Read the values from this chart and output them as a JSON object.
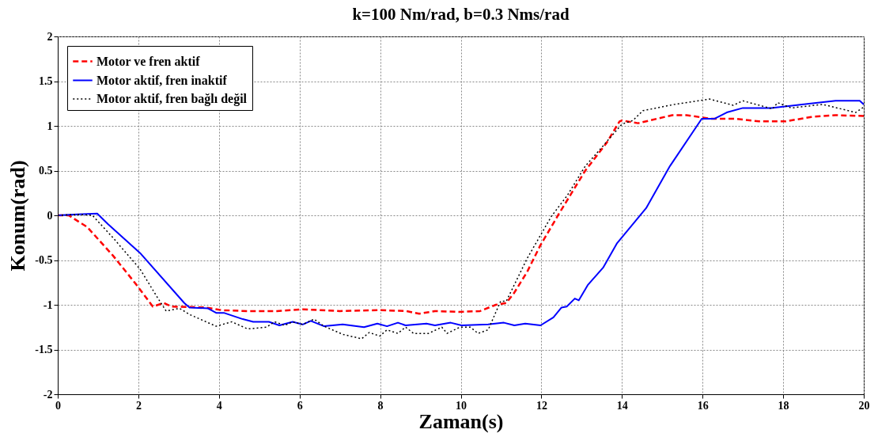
{
  "chart_data": {
    "type": "line",
    "title": "k=100 Nm/rad, b=0.3 Nms/rad",
    "xlabel": "Zaman(s)",
    "ylabel": "Konum(rad)",
    "xlim": [
      0,
      20
    ],
    "ylim": [
      -2,
      2
    ],
    "xticks": [
      0,
      2,
      4,
      6,
      8,
      10,
      12,
      14,
      16,
      18,
      20
    ],
    "yticks": [
      -2,
      -1.5,
      -1,
      -0.5,
      0,
      0.5,
      1,
      1.5,
      2
    ],
    "grid": true,
    "legend": "top left",
    "series": [
      {
        "name": "Motor ve fren aktif",
        "color": "#ff0000",
        "line_style": "dashed",
        "x": [
          0,
          0.27,
          0.73,
          1.37,
          1.96,
          2.36,
          2.63,
          2.83,
          3.67,
          4.07,
          4.71,
          5.44,
          6.08,
          7.0,
          7.99,
          8.64,
          8.97,
          9.36,
          9.95,
          10.48,
          10.87,
          11.13,
          11.32,
          11.65,
          11.97,
          12.44,
          13.09,
          13.62,
          13.94,
          14.0,
          14.4,
          15.25,
          15.6,
          16.2,
          16.8,
          17.4,
          18.06,
          18.7,
          19.3,
          20
        ],
        "values": [
          0,
          0,
          -0.13,
          -0.45,
          -0.78,
          -1.02,
          -0.98,
          -1.02,
          -1.03,
          -1.06,
          -1.07,
          -1.07,
          -1.05,
          -1.07,
          -1.06,
          -1.07,
          -1.1,
          -1.07,
          -1.08,
          -1.07,
          -1.0,
          -0.98,
          -0.87,
          -0.63,
          -0.34,
          0.02,
          0.5,
          0.81,
          1.05,
          1.06,
          1.03,
          1.12,
          1.12,
          1.08,
          1.08,
          1.05,
          1.05,
          1.1,
          1.12,
          1.11
        ]
      },
      {
        "name": "Motor aktif, fren inaktif",
        "color": "#0000ff",
        "line_style": "solid",
        "x": [
          0,
          0.5,
          0.98,
          1.25,
          2.04,
          3.14,
          3.27,
          3.73,
          3.93,
          4.12,
          4.59,
          4.85,
          5.24,
          5.5,
          5.83,
          6.08,
          6.28,
          6.61,
          7.07,
          7.6,
          7.93,
          8.17,
          8.44,
          8.63,
          9.15,
          9.36,
          9.75,
          10.02,
          10.68,
          11.07,
          11.33,
          11.6,
          11.98,
          12.3,
          12.5,
          12.63,
          12.83,
          12.93,
          13.15,
          13.54,
          13.88,
          14.6,
          15.19,
          15.98,
          16.3,
          16.6,
          17.0,
          17.7,
          18.3,
          19.3,
          19.9,
          20
        ],
        "values": [
          0,
          0.01,
          0.02,
          -0.1,
          -0.42,
          -0.98,
          -1.03,
          -1.04,
          -1.09,
          -1.09,
          -1.16,
          -1.19,
          -1.19,
          -1.23,
          -1.19,
          -1.22,
          -1.18,
          -1.24,
          -1.22,
          -1.25,
          -1.21,
          -1.24,
          -1.2,
          -1.23,
          -1.21,
          -1.23,
          -1.2,
          -1.23,
          -1.22,
          -1.2,
          -1.23,
          -1.21,
          -1.23,
          -1.14,
          -1.03,
          -1.02,
          -0.93,
          -0.95,
          -0.78,
          -0.58,
          -0.31,
          0.08,
          0.55,
          1.08,
          1.08,
          1.15,
          1.2,
          1.2,
          1.23,
          1.28,
          1.28,
          1.24
        ]
      },
      {
        "name": "Motor aktif, fren bağlı değil",
        "color": "#000000",
        "line_style": "dotted",
        "x": [
          0,
          0.5,
          0.86,
          1.37,
          2.04,
          2.49,
          2.69,
          3.02,
          3.28,
          3.93,
          4.32,
          4.71,
          5.18,
          5.38,
          5.63,
          5.83,
          6.08,
          6.36,
          6.61,
          7.07,
          7.54,
          7.73,
          7.99,
          8.17,
          8.44,
          8.63,
          8.83,
          9.2,
          9.53,
          9.66,
          9.98,
          10.24,
          10.43,
          10.68,
          10.99,
          11.13,
          11.65,
          12.25,
          12.64,
          13.09,
          13.48,
          14.0,
          14.27,
          14.52,
          15.3,
          16.17,
          16.76,
          17.0,
          17.74,
          17.86,
          18.2,
          18.98,
          19.8,
          20
        ],
        "values": [
          0,
          0.01,
          0,
          -0.25,
          -0.6,
          -0.93,
          -1.07,
          -1.04,
          -1.11,
          -1.24,
          -1.19,
          -1.27,
          -1.25,
          -1.19,
          -1.23,
          -1.19,
          -1.22,
          -1.16,
          -1.24,
          -1.33,
          -1.38,
          -1.31,
          -1.35,
          -1.28,
          -1.32,
          -1.25,
          -1.32,
          -1.32,
          -1.25,
          -1.32,
          -1.25,
          -1.25,
          -1.32,
          -1.28,
          -0.96,
          -0.96,
          -0.48,
          -0.01,
          0.22,
          0.55,
          0.75,
          1.02,
          1.06,
          1.17,
          1.24,
          1.3,
          1.23,
          1.28,
          1.19,
          1.26,
          1.2,
          1.24,
          1.15,
          1.21
        ]
      }
    ]
  }
}
